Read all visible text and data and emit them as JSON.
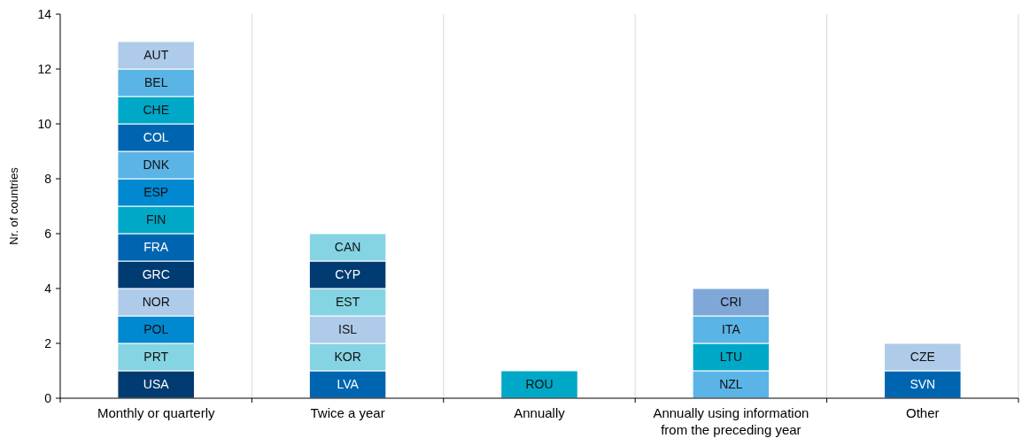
{
  "chart_data": {
    "type": "bar",
    "stacked": true,
    "ylabel": "Nr. of countries",
    "categories": [
      "Monthly or quarterly",
      "Twice a year",
      "Annually",
      "Annually using information from the preceding year",
      "Other"
    ],
    "ylim": [
      0,
      14
    ],
    "yticks": [
      0,
      2,
      4,
      6,
      8,
      10,
      12,
      14
    ],
    "grid": "x",
    "series": [
      {
        "values": [
          1,
          1,
          1,
          1,
          1
        ],
        "value_labels": [
          "USA",
          "LVA",
          "ROU",
          "NZL",
          "SVN"
        ],
        "colors": [
          "#003b72",
          "#0065b0",
          "#00a8c8",
          "#5ab4e5",
          "#0065b0"
        ]
      },
      {
        "values": [
          1,
          1,
          null,
          1,
          1
        ],
        "value_labels": [
          "PRT",
          "KOR",
          null,
          "LTU",
          "CZE"
        ],
        "colors": [
          "#85d4e3",
          "#85d4e3",
          null,
          "#00a8c8",
          "#aecbe9"
        ]
      },
      {
        "values": [
          1,
          1,
          null,
          1,
          null
        ],
        "value_labels": [
          "POL",
          "ISL",
          null,
          "ITA",
          null
        ],
        "colors": [
          "#0088d1",
          "#aecbe9",
          null,
          "#5ab4e5",
          null
        ]
      },
      {
        "values": [
          1,
          1,
          null,
          1,
          null
        ],
        "value_labels": [
          "NOR",
          "EST",
          null,
          "CRI",
          null
        ],
        "colors": [
          "#aecbe9",
          "#85d4e3",
          null,
          "#7fa8d9",
          null
        ]
      },
      {
        "values": [
          1,
          1,
          null,
          null,
          null
        ],
        "value_labels": [
          "GRC",
          "CYP",
          null,
          null,
          null
        ],
        "colors": [
          "#003b72",
          "#003b72",
          null,
          null,
          null
        ]
      },
      {
        "values": [
          1,
          1,
          null,
          null,
          null
        ],
        "value_labels": [
          "FRA",
          "CAN",
          null,
          null,
          null
        ],
        "colors": [
          "#0065b0",
          "#85d4e3",
          null,
          null,
          null
        ]
      },
      {
        "values": [
          1,
          null,
          null,
          null,
          null
        ],
        "value_labels": [
          "FIN",
          null,
          null,
          null,
          null
        ],
        "colors": [
          "#00a8c8",
          null,
          null,
          null,
          null
        ]
      },
      {
        "values": [
          1,
          null,
          null,
          null,
          null
        ],
        "value_labels": [
          "ESP",
          null,
          null,
          null,
          null
        ],
        "colors": [
          "#0088d1",
          null,
          null,
          null,
          null
        ]
      },
      {
        "values": [
          1,
          null,
          null,
          null,
          null
        ],
        "value_labels": [
          "DNK",
          null,
          null,
          null,
          null
        ],
        "colors": [
          "#5ab4e5",
          null,
          null,
          null,
          null
        ]
      },
      {
        "values": [
          1,
          null,
          null,
          null,
          null
        ],
        "value_labels": [
          "COL",
          null,
          null,
          null,
          null
        ],
        "colors": [
          "#0065b0",
          null,
          null,
          null,
          null
        ]
      },
      {
        "values": [
          1,
          null,
          null,
          null,
          null
        ],
        "value_labels": [
          "CHE",
          null,
          null,
          null,
          null
        ],
        "colors": [
          "#00a8c8",
          null,
          null,
          null,
          null
        ]
      },
      {
        "values": [
          1,
          null,
          null,
          null,
          null
        ],
        "value_labels": [
          "BEL",
          null,
          null,
          null,
          null
        ],
        "colors": [
          "#5ab4e5",
          null,
          null,
          null,
          null
        ]
      },
      {
        "values": [
          1,
          null,
          null,
          null,
          null
        ],
        "value_labels": [
          "AUT",
          null,
          null,
          null,
          null
        ],
        "colors": [
          "#aecbe9",
          null,
          null,
          null,
          null
        ]
      }
    ]
  }
}
